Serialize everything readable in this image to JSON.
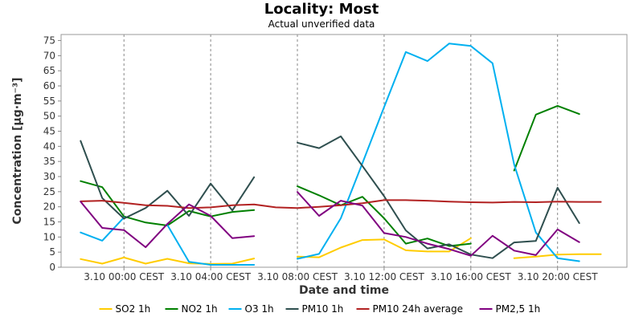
{
  "chart_data": {
    "type": "line",
    "title": "Locality: Most",
    "subtitle": "Actual unverified data",
    "xlabel": "Date and time",
    "ylabel": "Concentration [µg·m⁻³]",
    "ylim": [
      0,
      77
    ],
    "yticks": [
      0,
      5,
      10,
      15,
      20,
      25,
      30,
      35,
      40,
      45,
      50,
      55,
      60,
      65,
      70,
      75
    ],
    "xlim": [
      -2.9,
      23.2
    ],
    "xticks": [
      {
        "hour": 0,
        "label": "3.10 00:00 CEST"
      },
      {
        "hour": 4,
        "label": "3.10 04:00 CEST"
      },
      {
        "hour": 8,
        "label": "3.10 08:00 CEST"
      },
      {
        "hour": 12,
        "label": "3.10 12:00 CEST"
      },
      {
        "hour": 16,
        "label": "3.10 16:00 CEST"
      },
      {
        "hour": 20,
        "label": "3.10 20:00 CEST"
      }
    ],
    "grid": true,
    "legend_position": "bottom",
    "x": [
      -2,
      -1,
      0,
      1,
      2,
      3,
      4,
      5,
      6,
      7,
      8,
      9,
      10,
      11,
      12,
      13,
      14,
      15,
      16,
      17,
      18,
      19,
      20,
      21,
      22
    ],
    "series": [
      {
        "name": "SO2 1h",
        "color": "#ffcc00",
        "values": [
          2.7,
          1.2,
          3.2,
          1.2,
          2.8,
          1.3,
          1.1,
          1.2,
          2.9,
          null,
          3.5,
          3.3,
          6.5,
          9.0,
          9.2,
          5.6,
          5.2,
          5.2,
          9.6,
          null,
          3.0,
          3.5,
          4.2,
          4.3,
          4.3
        ]
      },
      {
        "name": "NO2 1h",
        "color": "#008000",
        "values": [
          28.5,
          26.5,
          16.8,
          14.8,
          13.8,
          18.6,
          16.8,
          18.3,
          18.9,
          null,
          26.8,
          23.8,
          20.5,
          23.3,
          16.2,
          7.8,
          9.5,
          7.0,
          7.8,
          null,
          32.0,
          50.5,
          53.4,
          50.7,
          null
        ]
      },
      {
        "name": "O3 1h",
        "color": "#00b0f0",
        "values": [
          11.5,
          8.8,
          16.5,
          null,
          14.0,
          1.8,
          0.8,
          0.8,
          0.8,
          null,
          2.8,
          4.4,
          16.2,
          34.4,
          53.0,
          71.2,
          68.2,
          74.0,
          73.2,
          67.5,
          34.0,
          11.5,
          3.0,
          2.0,
          null
        ]
      },
      {
        "name": "PM10 1h",
        "color": "#2f4f4f",
        "values": [
          41.8,
          22.9,
          16.1,
          19.6,
          25.3,
          17.0,
          27.7,
          18.8,
          29.8,
          null,
          41.2,
          39.4,
          43.3,
          33.5,
          23.5,
          12.2,
          6.2,
          7.6,
          4.2,
          3.0,
          8.2,
          8.7,
          26.3,
          14.6,
          null
        ]
      },
      {
        "name": "PM10 24h average",
        "color": "#b22222",
        "values": [
          21.8,
          22.0,
          21.3,
          20.5,
          20.3,
          19.6,
          19.8,
          20.5,
          20.8,
          19.8,
          19.6,
          20.0,
          20.5,
          21.2,
          22.2,
          22.2,
          22.0,
          21.7,
          21.5,
          21.4,
          21.6,
          21.5,
          21.7,
          21.6,
          21.6
        ]
      },
      {
        "name": "PM2,5 1h",
        "color": "#800080",
        "values": [
          21.7,
          13.0,
          12.3,
          6.6,
          14.3,
          20.8,
          17.0,
          9.6,
          10.3,
          null,
          24.9,
          17.0,
          22.0,
          20.4,
          11.3,
          10.0,
          7.8,
          6.0,
          3.8,
          10.4,
          5.5,
          4.0,
          12.5,
          8.3,
          null
        ]
      }
    ]
  }
}
